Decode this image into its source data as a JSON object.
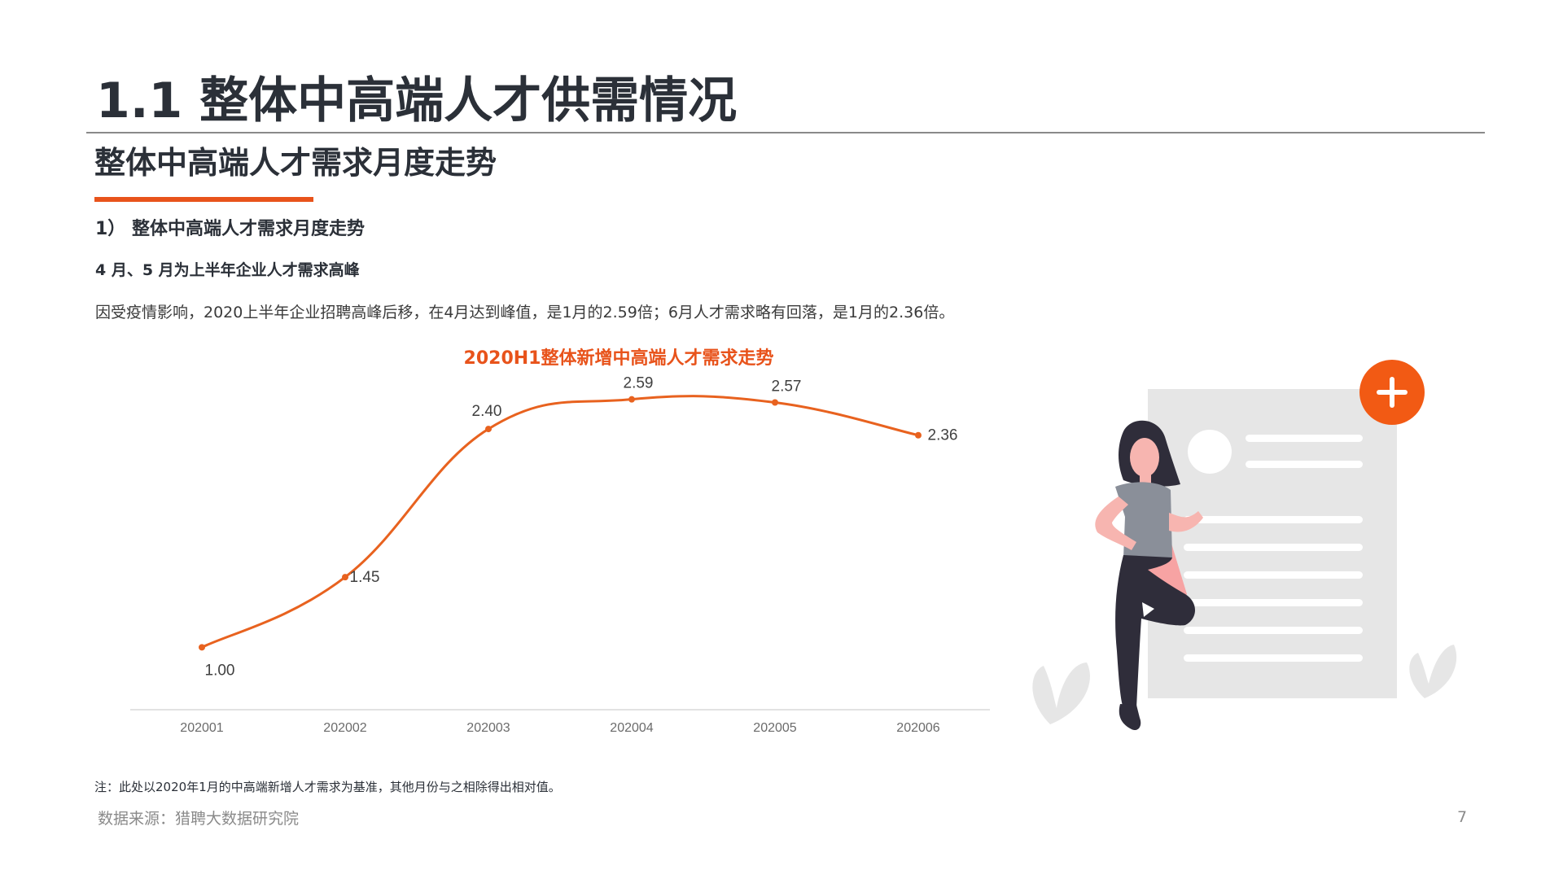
{
  "header": {
    "title": "1.1 整体中高端人才供需情况",
    "subtitle": "整体中高端人才需求月度走势"
  },
  "section": {
    "heading": "1） 整体中高端人才需求月度走势",
    "highlight": "4 月、5 月为上半年企业人才需求高峰",
    "body": "因受疫情影响，2020上半年企业招聘高峰后移，在4月达到峰值，是1月的2.59倍；6月人才需求略有回落，是1月的2.36倍。"
  },
  "chart_data": {
    "type": "line",
    "title": "2020H1整体新增中高端人才需求走势",
    "xlabel": "",
    "ylabel": "",
    "categories": [
      "202001",
      "202002",
      "202003",
      "202004",
      "202005",
      "202006"
    ],
    "series": [
      {
        "values": [
          1.0,
          1.45,
          2.4,
          2.59,
          2.57,
          2.36
        ],
        "labels": [
          "1.00",
          "1.45",
          "2.40",
          "2.59",
          "2.57",
          "2.36"
        ],
        "color": "#e8621f"
      }
    ],
    "ylim": [
      0.6,
      2.75
    ],
    "grid": false,
    "smooth": true
  },
  "footer": {
    "note": "注：此处以2020年1月的中高端新增人才需求为基准，其他月份与之相除得出相对值。",
    "source": "数据来源：猎聘大数据研究院",
    "page": "7"
  },
  "colors": {
    "accent": "#e8531b",
    "title": "#2b3038",
    "axis": "#d9d9d9",
    "muted": "#8a8a8a"
  },
  "illustration": {
    "icons": [
      "plus-icon",
      "document-icon",
      "person-figure",
      "leaf-icon"
    ]
  }
}
